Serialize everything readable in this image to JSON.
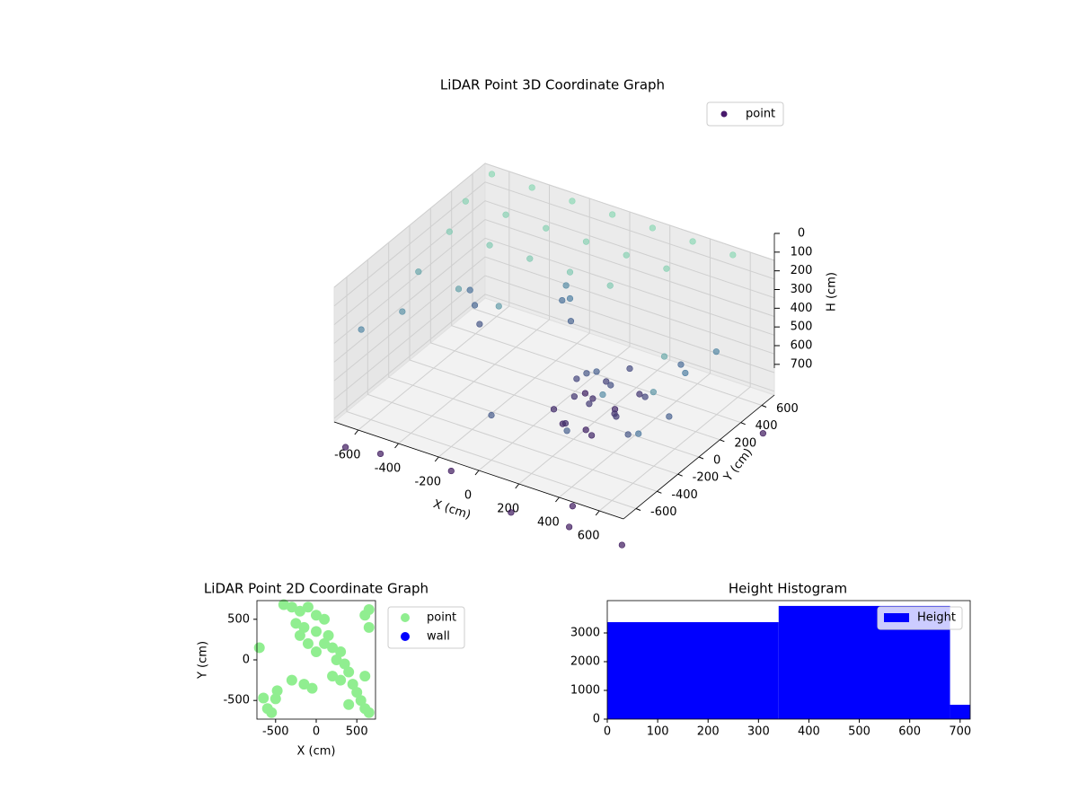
{
  "chart_data": [
    {
      "type": "scatter3d",
      "title": "LiDAR Point 3D Coordinate Graph",
      "xlabel": "X (cm)",
      "ylabel": "Y (cm)",
      "zlabel": "H (cm)",
      "xlim": [
        -720,
        720
      ],
      "ylim": [
        -720,
        720
      ],
      "zlim": [
        720,
        0
      ],
      "xticks": [
        -600,
        -400,
        -200,
        0,
        200,
        400,
        600
      ],
      "yticks": [
        -600,
        -400,
        -200,
        0,
        200,
        400,
        600
      ],
      "zticks": [
        0,
        100,
        200,
        300,
        400,
        500,
        600,
        700
      ],
      "colormap": [
        "#8fd9b6",
        "#4f7fa3",
        "#3e1a5e"
      ],
      "legend": "upper right",
      "series": [
        {
          "name": "point",
          "color": "#481a6c",
          "x": [
            -650,
            -450,
            -250,
            -50,
            150,
            350,
            550,
            -650,
            -450,
            -250,
            -50,
            150,
            350,
            -600,
            -400,
            -200,
            0,
            200,
            -650,
            -450,
            -250,
            600,
            650,
            450,
            -600,
            -700,
            650,
            600,
            500,
            650,
            550,
            680,
            350,
            -500,
            -550,
            -450,
            0,
            100,
            150,
            200,
            250,
            50,
            180,
            300,
            120,
            220,
            80,
            260,
            350,
            400,
            320,
            160,
            60,
            240,
            280,
            140,
            200,
            -150,
            -120,
            -180,
            -100,
            -700,
            -500,
            150,
            450,
            700,
            650,
            300,
            -200
          ],
          "y": [
            650,
            650,
            650,
            650,
            650,
            650,
            650,
            400,
            400,
            400,
            400,
            400,
            400,
            150,
            150,
            150,
            150,
            150,
            -50,
            -50,
            -50,
            -100,
            -300,
            -400,
            -300,
            -500,
            300,
            100,
            250,
            -150,
            -350,
            -500,
            -550,
            200,
            250,
            150,
            -600,
            0,
            80,
            -50,
            100,
            -100,
            150,
            0,
            -150,
            -120,
            60,
            40,
            -80,
            100,
            200,
            -200,
            180,
            260,
            -180,
            40,
            20,
            400,
            380,
            420,
            350,
            -650,
            -700,
            -700,
            -720,
            650,
            -600,
            -400,
            -600
          ],
          "z": [
            0,
            0,
            0,
            0,
            0,
            0,
            0,
            30,
            30,
            30,
            30,
            30,
            30,
            60,
            60,
            60,
            60,
            60,
            200,
            220,
            240,
            180,
            260,
            300,
            280,
            320,
            320,
            360,
            420,
            460,
            500,
            380,
            460,
            440,
            400,
            500,
            480,
            620,
            650,
            600,
            680,
            660,
            580,
            640,
            690,
            700,
            560,
            520,
            600,
            560,
            620,
            650,
            700,
            540,
            680,
            500,
            460,
            300,
            350,
            400,
            450,
            880,
            820,
            900,
            860,
            900,
            940,
            950,
            850
          ]
        }
      ]
    },
    {
      "type": "scatter",
      "title": "LiDAR Point 2D Coordinate Graph",
      "xlabel": "X (cm)",
      "ylabel": "Y (cm)",
      "xlim": [
        -730,
        730
      ],
      "ylim": [
        -730,
        730
      ],
      "xticks": [
        -500,
        0,
        500
      ],
      "yticks": [
        -500,
        0,
        500
      ],
      "legend": "outside right",
      "series": [
        {
          "name": "point",
          "color": "#90ee90",
          "x": [
            -400,
            -300,
            -200,
            -100,
            0,
            100,
            -250,
            -150,
            0,
            150,
            100,
            200,
            300,
            250,
            350,
            400,
            300,
            450,
            500,
            550,
            600,
            650,
            400,
            200,
            0,
            -100,
            -200,
            600,
            650,
            600,
            -50,
            -150,
            -300,
            -480,
            -650,
            -500,
            -700,
            -600,
            650,
            -550
          ],
          "y": [
            680,
            650,
            600,
            650,
            550,
            500,
            450,
            400,
            350,
            300,
            200,
            150,
            100,
            0,
            -50,
            -150,
            -250,
            -300,
            -400,
            -500,
            -600,
            -650,
            -550,
            -200,
            100,
            200,
            300,
            550,
            400,
            -200,
            -350,
            -300,
            -250,
            -380,
            -470,
            -480,
            150,
            -600,
            620,
            -650
          ]
        },
        {
          "name": "wall",
          "color": "#0000ff",
          "x": [],
          "y": []
        }
      ]
    },
    {
      "type": "histogram",
      "title": "Height Histogram",
      "name": "Height",
      "color": "#0000ff",
      "bins": [
        0,
        340,
        680,
        720
      ],
      "counts": [
        3375,
        3940,
        500
      ],
      "xlim": [
        0,
        720
      ],
      "ylim": [
        0,
        4125
      ],
      "xticks": [
        0,
        100,
        200,
        300,
        400,
        500,
        600,
        700
      ],
      "yticks": [
        0,
        1000,
        2000,
        3000
      ],
      "legend": "upper right"
    }
  ]
}
